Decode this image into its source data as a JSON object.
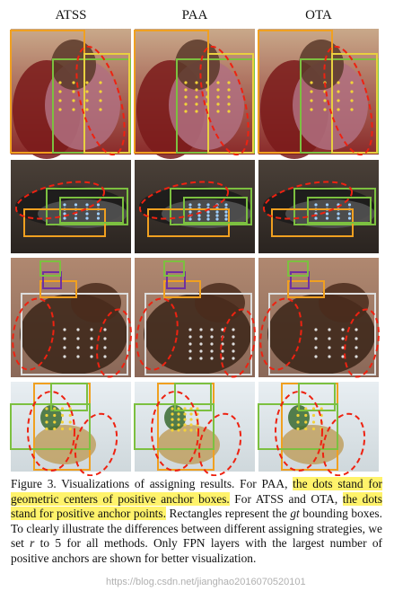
{
  "figure": {
    "columns": [
      "ATSS",
      "PAA",
      "OTA"
    ],
    "caption": [
      {
        "text": "Figure 3. Visualizations of assigning results. For PAA, "
      },
      {
        "text": "the dots stand for geometric centers of positive anchor boxes.",
        "highlight": true
      },
      {
        "text": " For ATSS and OTA, "
      },
      {
        "text": "the dots stand for positive anchor points.",
        "highlight": true
      },
      {
        "text": " Rectangles represent the "
      },
      {
        "text": "gt",
        "italic": true
      },
      {
        "text": " bounding boxes. To clearly illustrate the differences between different assigning strategies, we set "
      },
      {
        "text": "r",
        "italic": true
      },
      {
        "text": " to 5 for all methods. Only FPN layers with the largest number of positive anchors are shown for better visualization."
      }
    ],
    "watermark": "https://blog.csdn.net/jianghao2016070520101"
  }
}
